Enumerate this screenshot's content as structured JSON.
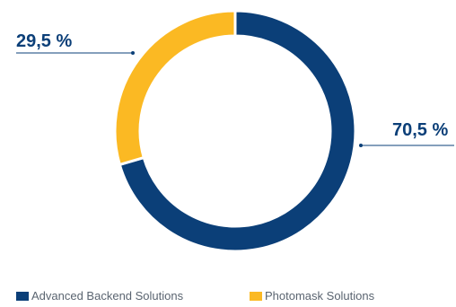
{
  "chart_data": {
    "type": "pie",
    "donut": true,
    "series": [
      {
        "name": "Advanced Backend Solutions",
        "value": 70.5,
        "label": "70,5 %",
        "color": "#0b3f78"
      },
      {
        "name": "Photomask Solutions",
        "value": 29.5,
        "label": "29,5 %",
        "color": "#fbb923"
      }
    ],
    "legend": "bottom",
    "start_angle_deg": 0,
    "direction": "clockwise"
  }
}
